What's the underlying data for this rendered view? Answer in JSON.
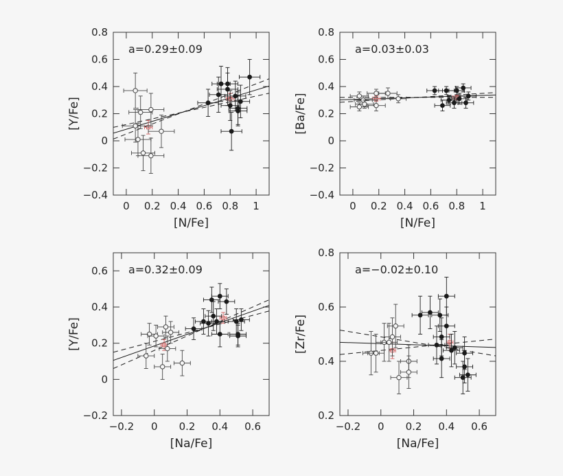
{
  "colors": {
    "ink": "#1a1a1a",
    "open": "#444444",
    "mean": "#d06060",
    "frame": "#333333"
  },
  "chart_data": [
    {
      "type": "scatter",
      "xlabel": "[N/Fe]",
      "ylabel": "[Y/Fe]",
      "xlim": [
        -0.1,
        1.1
      ],
      "ylim": [
        -0.4,
        0.8
      ],
      "xticks": [
        0,
        0.2,
        0.4,
        0.6,
        0.8,
        1
      ],
      "xtick_labels": [
        "0",
        "0.2",
        "0.4",
        "0.6",
        "0.8",
        "1"
      ],
      "yticks": [
        -0.4,
        -0.2,
        0,
        0.2,
        0.4,
        0.6,
        0.8
      ],
      "ytick_labels": [
        "−0.4",
        "−0.2",
        "0",
        "0.2",
        "0.4",
        "0.6",
        "0.8"
      ],
      "annotation": "a=0.29±0.09",
      "fit": {
        "slope": 0.29,
        "intercept": 0.085
      },
      "fit_dashed": [
        {
          "slope": 0.37,
          "intercept": 0.05
        },
        {
          "slope": 0.21,
          "intercept": 0.12
        }
      ],
      "open_points": [
        {
          "x": 0.07,
          "y": 0.37,
          "xerr": 0.09,
          "yerr": 0.13
        },
        {
          "x": 0.07,
          "y": 0.11,
          "xerr": 0.1,
          "yerr": 0.12
        },
        {
          "x": 0.09,
          "y": 0.01,
          "xerr": 0.1,
          "yerr": 0.12
        },
        {
          "x": 0.11,
          "y": 0.21,
          "xerr": 0.09,
          "yerr": 0.12
        },
        {
          "x": 0.13,
          "y": -0.09,
          "xerr": 0.09,
          "yerr": 0.13
        },
        {
          "x": 0.19,
          "y": 0.23,
          "xerr": 0.1,
          "yerr": 0.12
        },
        {
          "x": 0.19,
          "y": -0.11,
          "xerr": 0.1,
          "yerr": 0.13
        },
        {
          "x": 0.27,
          "y": 0.07,
          "xerr": 0.1,
          "yerr": 0.12
        }
      ],
      "filled_points": [
        {
          "x": 0.63,
          "y": 0.28,
          "xerr": 0.08,
          "yerr": 0.1
        },
        {
          "x": 0.71,
          "y": 0.34,
          "xerr": 0.07,
          "yerr": 0.13
        },
        {
          "x": 0.73,
          "y": 0.42,
          "xerr": 0.07,
          "yerr": 0.13
        },
        {
          "x": 0.78,
          "y": 0.38,
          "xerr": 0.08,
          "yerr": 0.12
        },
        {
          "x": 0.78,
          "y": 0.42,
          "xerr": 0.08,
          "yerr": 0.12
        },
        {
          "x": 0.8,
          "y": 0.26,
          "xerr": 0.07,
          "yerr": 0.11
        },
        {
          "x": 0.81,
          "y": 0.07,
          "xerr": 0.08,
          "yerr": 0.14
        },
        {
          "x": 0.84,
          "y": 0.33,
          "xerr": 0.08,
          "yerr": 0.11
        },
        {
          "x": 0.86,
          "y": 0.22,
          "xerr": 0.07,
          "yerr": 0.11
        },
        {
          "x": 0.86,
          "y": 0.24,
          "xerr": 0.07,
          "yerr": 0.12
        },
        {
          "x": 0.88,
          "y": 0.29,
          "xerr": 0.07,
          "yerr": 0.12
        },
        {
          "x": 0.95,
          "y": 0.47,
          "xerr": 0.08,
          "yerr": 0.13
        }
      ],
      "means": [
        {
          "x": 0.17,
          "y": 0.1,
          "xerr": 0.03,
          "yerr": 0.05
        },
        {
          "x": 0.8,
          "y": 0.31,
          "xerr": 0.03,
          "yerr": 0.04
        }
      ]
    },
    {
      "type": "scatter",
      "xlabel": "[N/Fe]",
      "ylabel": "[Ba/Fe]",
      "xlim": [
        -0.1,
        1.1
      ],
      "ylim": [
        -0.4,
        0.8
      ],
      "xticks": [
        0,
        0.2,
        0.4,
        0.6,
        0.8,
        1
      ],
      "xtick_labels": [
        "0",
        "0.2",
        "0.4",
        "0.6",
        "0.8",
        "1"
      ],
      "yticks": [
        -0.4,
        -0.2,
        0,
        0.2,
        0.4,
        0.6,
        0.8
      ],
      "ytick_labels": [
        "−0.4",
        "−0.2",
        "0",
        "0.2",
        "0.4",
        "0.6",
        "0.8"
      ],
      "annotation": "a=0.03±0.03",
      "fit": {
        "slope": 0.03,
        "intercept": 0.305
      },
      "fit_dashed": [
        {
          "slope": 0.06,
          "intercept": 0.29
        },
        {
          "slope": 0.0,
          "intercept": 0.32
        }
      ],
      "open_points": [
        {
          "x": 0.05,
          "y": 0.33,
          "xerr": 0.07,
          "yerr": 0.03
        },
        {
          "x": 0.05,
          "y": 0.25,
          "xerr": 0.07,
          "yerr": 0.03
        },
        {
          "x": 0.08,
          "y": 0.3,
          "xerr": 0.07,
          "yerr": 0.03
        },
        {
          "x": 0.09,
          "y": 0.27,
          "xerr": 0.07,
          "yerr": 0.03
        },
        {
          "x": 0.18,
          "y": 0.35,
          "xerr": 0.07,
          "yerr": 0.03
        },
        {
          "x": 0.18,
          "y": 0.26,
          "xerr": 0.07,
          "yerr": 0.04
        },
        {
          "x": 0.27,
          "y": 0.35,
          "xerr": 0.07,
          "yerr": 0.04
        },
        {
          "x": 0.35,
          "y": 0.31,
          "xerr": 0.06,
          "yerr": 0.03
        }
      ],
      "filled_points": [
        {
          "x": 0.63,
          "y": 0.37,
          "xerr": 0.06,
          "yerr": 0.03
        },
        {
          "x": 0.69,
          "y": 0.26,
          "xerr": 0.06,
          "yerr": 0.04
        },
        {
          "x": 0.72,
          "y": 0.37,
          "xerr": 0.06,
          "yerr": 0.03
        },
        {
          "x": 0.74,
          "y": 0.3,
          "xerr": 0.06,
          "yerr": 0.03
        },
        {
          "x": 0.78,
          "y": 0.28,
          "xerr": 0.06,
          "yerr": 0.04
        },
        {
          "x": 0.8,
          "y": 0.37,
          "xerr": 0.06,
          "yerr": 0.03
        },
        {
          "x": 0.82,
          "y": 0.31,
          "xerr": 0.06,
          "yerr": 0.04
        },
        {
          "x": 0.85,
          "y": 0.39,
          "xerr": 0.06,
          "yerr": 0.03
        },
        {
          "x": 0.87,
          "y": 0.28,
          "xerr": 0.06,
          "yerr": 0.04
        },
        {
          "x": 0.89,
          "y": 0.33,
          "xerr": 0.06,
          "yerr": 0.03
        }
      ],
      "means": [
        {
          "x": 0.18,
          "y": 0.31,
          "xerr": 0.03,
          "yerr": 0.02
        },
        {
          "x": 0.8,
          "y": 0.32,
          "xerr": 0.03,
          "yerr": 0.02
        }
      ]
    },
    {
      "type": "scatter",
      "xlabel": "[Na/Fe]",
      "ylabel": "[Y/Fe]",
      "xlim": [
        -0.25,
        0.7
      ],
      "ylim": [
        -0.2,
        0.7
      ],
      "xticks": [
        -0.2,
        0,
        0.2,
        0.4,
        0.6
      ],
      "xtick_labels": [
        "−0.2",
        "0",
        "0.2",
        "0.4",
        "0.6"
      ],
      "yticks": [
        -0.2,
        0,
        0.2,
        0.4,
        0.6
      ],
      "ytick_labels": [
        "−0.2",
        "0",
        "0.2",
        "0.4",
        "0.6"
      ],
      "annotation": "a=0.32±0.09",
      "fit": {
        "slope": 0.32,
        "intercept": 0.185
      },
      "fit_dashed": [
        {
          "slope": 0.24,
          "intercept": 0.21
        },
        {
          "slope": 0.4,
          "intercept": 0.16
        }
      ],
      "open_points": [
        {
          "x": -0.05,
          "y": 0.13,
          "xerr": 0.05,
          "yerr": 0.07
        },
        {
          "x": -0.03,
          "y": 0.25,
          "xerr": 0.05,
          "yerr": 0.06
        },
        {
          "x": 0.01,
          "y": 0.24,
          "xerr": 0.05,
          "yerr": 0.06
        },
        {
          "x": 0.05,
          "y": 0.07,
          "xerr": 0.05,
          "yerr": 0.07
        },
        {
          "x": 0.07,
          "y": 0.29,
          "xerr": 0.05,
          "yerr": 0.06
        },
        {
          "x": 0.08,
          "y": 0.17,
          "xerr": 0.05,
          "yerr": 0.07
        },
        {
          "x": 0.1,
          "y": 0.26,
          "xerr": 0.05,
          "yerr": 0.06
        },
        {
          "x": 0.17,
          "y": 0.09,
          "xerr": 0.05,
          "yerr": 0.07
        }
      ],
      "filled_points": [
        {
          "x": 0.24,
          "y": 0.28,
          "xerr": 0.05,
          "yerr": 0.06
        },
        {
          "x": 0.3,
          "y": 0.32,
          "xerr": 0.05,
          "yerr": 0.07
        },
        {
          "x": 0.33,
          "y": 0.31,
          "xerr": 0.05,
          "yerr": 0.07
        },
        {
          "x": 0.35,
          "y": 0.44,
          "xerr": 0.05,
          "yerr": 0.07
        },
        {
          "x": 0.36,
          "y": 0.35,
          "xerr": 0.05,
          "yerr": 0.08
        },
        {
          "x": 0.38,
          "y": 0.32,
          "xerr": 0.05,
          "yerr": 0.07
        },
        {
          "x": 0.4,
          "y": 0.46,
          "xerr": 0.05,
          "yerr": 0.07
        },
        {
          "x": 0.4,
          "y": 0.25,
          "xerr": 0.05,
          "yerr": 0.07
        },
        {
          "x": 0.44,
          "y": 0.43,
          "xerr": 0.05,
          "yerr": 0.07
        },
        {
          "x": 0.5,
          "y": 0.32,
          "xerr": 0.05,
          "yerr": 0.07
        },
        {
          "x": 0.51,
          "y": 0.25,
          "xerr": 0.05,
          "yerr": 0.06
        },
        {
          "x": 0.51,
          "y": 0.24,
          "xerr": 0.05,
          "yerr": 0.06
        },
        {
          "x": 0.53,
          "y": 0.33,
          "xerr": 0.05,
          "yerr": 0.06
        }
      ],
      "means": [
        {
          "x": 0.06,
          "y": 0.19,
          "xerr": 0.02,
          "yerr": 0.03
        },
        {
          "x": 0.42,
          "y": 0.34,
          "xerr": 0.02,
          "yerr": 0.03
        }
      ]
    },
    {
      "type": "scatter",
      "xlabel": "[Na/Fe]",
      "ylabel": "[Zr/Fe]",
      "xlim": [
        -0.25,
        0.7
      ],
      "ylim": [
        0.2,
        0.8
      ],
      "xticks": [
        -0.2,
        0,
        0.2,
        0.4,
        0.6
      ],
      "xtick_labels": [
        "−0.2",
        "0",
        "0.2",
        "0.4",
        "0.6"
      ],
      "yticks": [
        0.2,
        0.4,
        0.6,
        0.8
      ],
      "ytick_labels": [
        "0.2",
        "0.4",
        "0.6",
        "0.8"
      ],
      "annotation": "a=−0.02±0.10",
      "fit": {
        "slope": -0.02,
        "intercept": 0.465
      },
      "fit_dashed": [
        {
          "slope": 0.06,
          "intercept": 0.44
        },
        {
          "slope": -0.1,
          "intercept": 0.49
        }
      ],
      "open_points": [
        {
          "x": -0.06,
          "y": 0.43,
          "xerr": 0.05,
          "yerr": 0.08
        },
        {
          "x": -0.03,
          "y": 0.43,
          "xerr": 0.05,
          "yerr": 0.07
        },
        {
          "x": 0.02,
          "y": 0.47,
          "xerr": 0.05,
          "yerr": 0.07
        },
        {
          "x": 0.05,
          "y": 0.47,
          "xerr": 0.05,
          "yerr": 0.07
        },
        {
          "x": 0.07,
          "y": 0.49,
          "xerr": 0.05,
          "yerr": 0.07
        },
        {
          "x": 0.09,
          "y": 0.53,
          "xerr": 0.05,
          "yerr": 0.08
        },
        {
          "x": 0.11,
          "y": 0.34,
          "xerr": 0.05,
          "yerr": 0.06
        },
        {
          "x": 0.17,
          "y": 0.4,
          "xerr": 0.05,
          "yerr": 0.06
        },
        {
          "x": 0.17,
          "y": 0.36,
          "xerr": 0.05,
          "yerr": 0.06
        }
      ],
      "filled_points": [
        {
          "x": 0.24,
          "y": 0.57,
          "xerr": 0.05,
          "yerr": 0.07
        },
        {
          "x": 0.3,
          "y": 0.58,
          "xerr": 0.05,
          "yerr": 0.06
        },
        {
          "x": 0.34,
          "y": 0.46,
          "xerr": 0.05,
          "yerr": 0.07
        },
        {
          "x": 0.36,
          "y": 0.57,
          "xerr": 0.05,
          "yerr": 0.06
        },
        {
          "x": 0.37,
          "y": 0.49,
          "xerr": 0.05,
          "yerr": 0.07
        },
        {
          "x": 0.37,
          "y": 0.41,
          "xerr": 0.05,
          "yerr": 0.07
        },
        {
          "x": 0.4,
          "y": 0.64,
          "xerr": 0.05,
          "yerr": 0.07
        },
        {
          "x": 0.4,
          "y": 0.53,
          "xerr": 0.05,
          "yerr": 0.07
        },
        {
          "x": 0.43,
          "y": 0.44,
          "xerr": 0.05,
          "yerr": 0.06
        },
        {
          "x": 0.45,
          "y": 0.45,
          "xerr": 0.05,
          "yerr": 0.06
        },
        {
          "x": 0.5,
          "y": 0.34,
          "xerr": 0.05,
          "yerr": 0.06
        },
        {
          "x": 0.51,
          "y": 0.43,
          "xerr": 0.05,
          "yerr": 0.06
        },
        {
          "x": 0.51,
          "y": 0.38,
          "xerr": 0.05,
          "yerr": 0.06
        },
        {
          "x": 0.53,
          "y": 0.35,
          "xerr": 0.05,
          "yerr": 0.06
        }
      ],
      "means": [
        {
          "x": 0.07,
          "y": 0.44,
          "xerr": 0.02,
          "yerr": 0.03
        },
        {
          "x": 0.42,
          "y": 0.47,
          "xerr": 0.02,
          "yerr": 0.03
        }
      ]
    }
  ]
}
